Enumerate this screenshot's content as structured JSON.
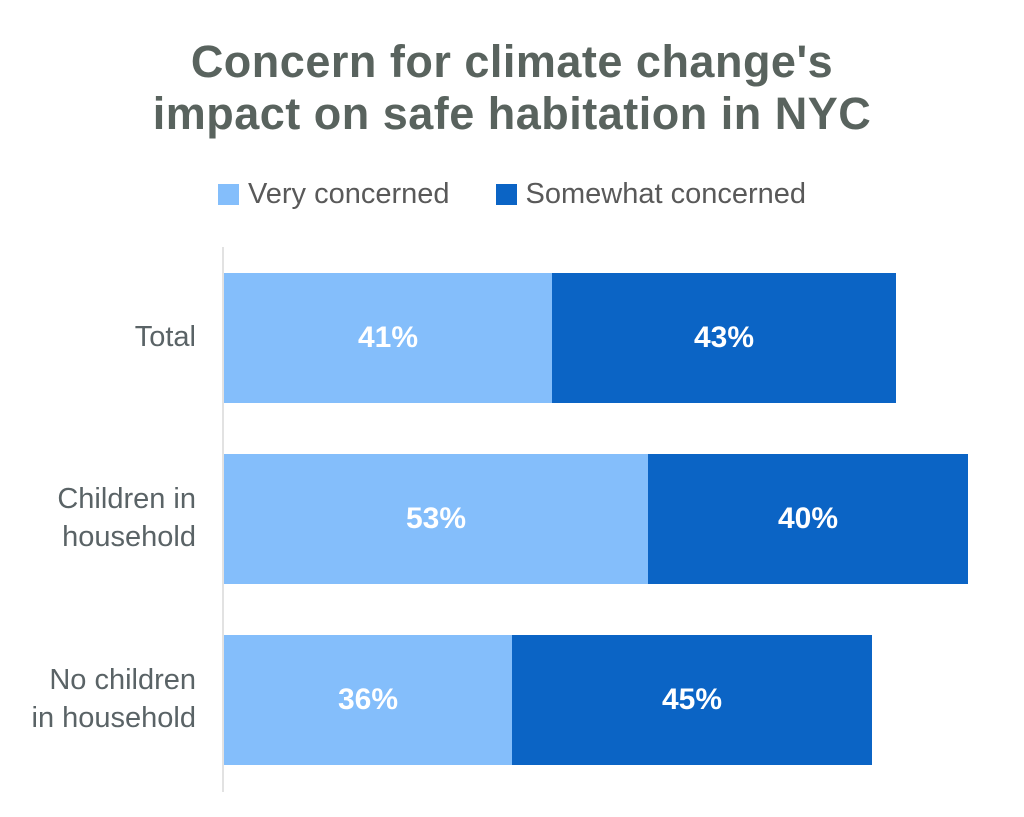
{
  "title": {
    "lines": [
      "Concern for climate change's",
      "impact on safe habitation in NYC"
    ],
    "full": "Concern for climate change's impact on safe habitation in NYC",
    "color": "#59635E"
  },
  "legend": {
    "items": [
      {
        "label": "Very concerned",
        "color": "#84BEFB"
      },
      {
        "label": "Somewhat concerned",
        "color": "#0B64C5"
      }
    ]
  },
  "chart_data": {
    "type": "bar",
    "orientation": "horizontal",
    "stacked": true,
    "title": "Concern for climate change's impact on safe habitation in NYC",
    "categories": [
      "Total",
      "Children in household",
      "No children in household"
    ],
    "category_display": [
      "Total",
      "Children in\nhousehold",
      "No children\nin household"
    ],
    "series": [
      {
        "name": "Very concerned",
        "color": "#84BEFB",
        "values": [
          41,
          53,
          36
        ]
      },
      {
        "name": "Somewhat concerned",
        "color": "#0B64C5",
        "values": [
          43,
          40,
          45
        ]
      }
    ],
    "bar_labels": [
      [
        "41%",
        "43%"
      ],
      [
        "53%",
        "40%"
      ],
      [
        "36%",
        "45%"
      ]
    ],
    "value_unit": "%",
    "xlim": [
      0,
      100
    ],
    "grid": false,
    "legend_position": "top",
    "colors": {
      "axis_line": "#E2E2E2",
      "category_label": "#5A6366",
      "legend_label": "#595959",
      "value_label": "#FFFFFF",
      "background": "#FFFFFF"
    }
  }
}
